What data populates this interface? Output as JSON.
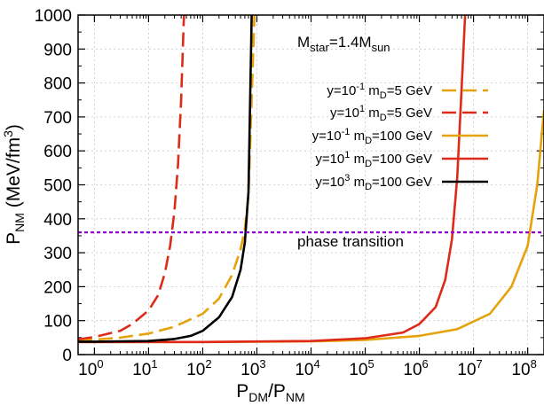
{
  "chart_data": {
    "type": "line",
    "annotation": "M_star=1.4M_sun",
    "xlabel": "P_DM/P_NM",
    "ylabel": "P_NM (MeV/fm^3)",
    "x_scale": "log",
    "xlim": [
      0.5,
      200000000
    ],
    "ylim": [
      0,
      1000
    ],
    "grid": true,
    "legend_position": "top-right",
    "y_ticks": [
      "0",
      "100",
      "200",
      "300",
      "400",
      "500",
      "600",
      "700",
      "800",
      "900",
      "1000"
    ],
    "x_ticks": [
      {
        "base": "10",
        "exp": "0",
        "value": 1
      },
      {
        "base": "10",
        "exp": "1",
        "value": 10
      },
      {
        "base": "10",
        "exp": "2",
        "value": 100
      },
      {
        "base": "10",
        "exp": "3",
        "value": 1000
      },
      {
        "base": "10",
        "exp": "4",
        "value": 10000
      },
      {
        "base": "10",
        "exp": "5",
        "value": 100000
      },
      {
        "base": "10",
        "exp": "6",
        "value": 1000000
      },
      {
        "base": "10",
        "exp": "7",
        "value": 10000000
      },
      {
        "base": "10",
        "exp": "8",
        "value": 100000000
      }
    ],
    "phase_transition": {
      "label": "phase transition",
      "value": 360,
      "color": "#9400d3"
    },
    "series": [
      {
        "legend": {
          "pre": "y=10",
          "pexp": "-1",
          "mid": " m",
          "sub": "D",
          "post": "=5 GeV"
        },
        "color": "#e6a20a",
        "dash": "16,7",
        "x": [
          0.5,
          1,
          3,
          10,
          30,
          100,
          200,
          350,
          500,
          600,
          700,
          900
        ],
        "y": [
          42,
          44,
          50,
          62,
          82,
          120,
          165,
          235,
          310,
          370,
          470,
          1000
        ]
      },
      {
        "legend": {
          "pre": "y=10",
          "pexp": "1",
          "mid": " m",
          "sub": "D",
          "post": "=5 GeV"
        },
        "color": "#dd2a1b",
        "dash": "16,7",
        "x": [
          0.5,
          1,
          3,
          5,
          10,
          15,
          20,
          25,
          30,
          35,
          40,
          45
        ],
        "y": [
          45,
          52,
          70,
          90,
          130,
          175,
          240,
          320,
          420,
          560,
          750,
          1000
        ]
      },
      {
        "legend": {
          "pre": "y=10",
          "pexp": "-1",
          "mid": " m",
          "sub": "D",
          "post": "=100 GeV"
        },
        "color": "#e6a20a",
        "dash": "",
        "x": [
          0.5,
          1,
          100,
          10000,
          100000,
          1000000,
          5000000,
          20000000,
          50000000,
          100000000,
          150000000,
          200000000
        ],
        "y": [
          37,
          37,
          37,
          39,
          43,
          55,
          75,
          120,
          200,
          320,
          500,
          720
        ]
      },
      {
        "legend": {
          "pre": "y=10",
          "pexp": "1",
          "mid": " m",
          "sub": "D",
          "post": "=100 GeV"
        },
        "color": "#dd2a1b",
        "dash": "",
        "x": [
          0.5,
          1,
          100,
          10000,
          100000,
          500000,
          1000000,
          2000000,
          3000000,
          4000000,
          5000000,
          6000000,
          7000000
        ],
        "y": [
          37,
          37,
          37,
          40,
          48,
          65,
          90,
          140,
          220,
          340,
          520,
          780,
          1000
        ]
      },
      {
        "legend": {
          "pre": "y=10",
          "pexp": "3",
          "mid": " m",
          "sub": "D",
          "post": "=100 GeV"
        },
        "color": "#000000",
        "dash": "",
        "x": [
          0.5,
          1,
          10,
          30,
          60,
          100,
          200,
          350,
          500,
          600,
          700,
          800
        ],
        "y": [
          38,
          38,
          40,
          46,
          55,
          70,
          110,
          170,
          250,
          330,
          480,
          1000
        ]
      }
    ]
  }
}
